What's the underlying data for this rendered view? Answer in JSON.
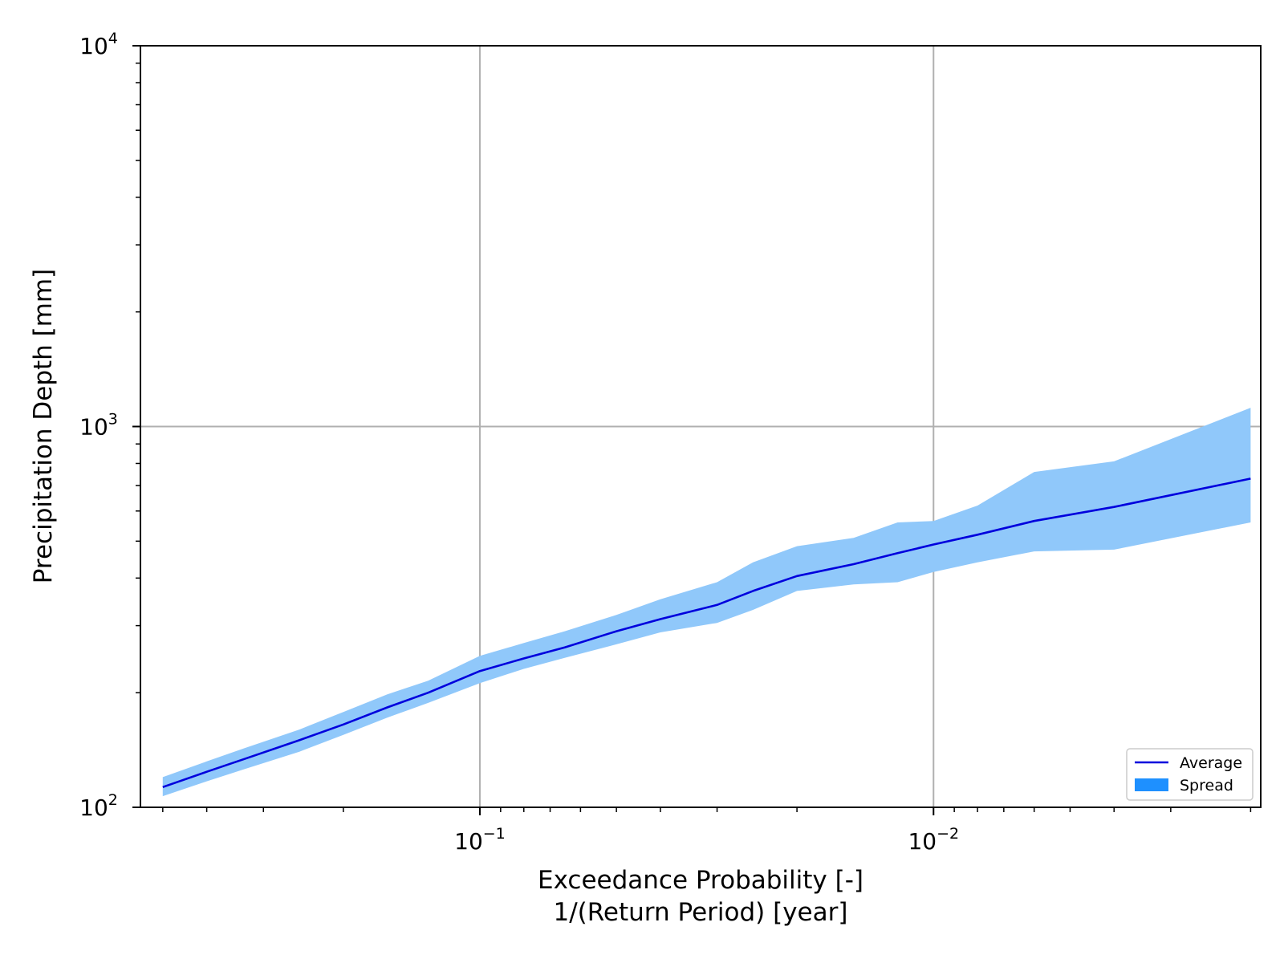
{
  "chart_data": {
    "type": "line",
    "title": "",
    "xlabel": [
      "Exceedance Probability [-]",
      "1/(Return Period) [year]"
    ],
    "ylabel": "Precipitation Depth [mm]",
    "x_scale": "log",
    "x_inverted": true,
    "y_scale": "log",
    "xlim": [
      0.56,
      0.0019
    ],
    "ylim": [
      100,
      10000
    ],
    "x_ticks": [
      {
        "value": 0.1,
        "base": "10",
        "exp": "−1"
      },
      {
        "value": 0.01,
        "base": "10",
        "exp": "−2"
      }
    ],
    "y_ticks": [
      {
        "value": 100,
        "base": "10",
        "exp": "2"
      },
      {
        "value": 1000,
        "base": "10",
        "exp": "3"
      },
      {
        "value": 10000,
        "base": "10",
        "exp": "4"
      }
    ],
    "grid": true,
    "legend": {
      "position": "lower-right"
    },
    "series": [
      {
        "name": "Average",
        "kind": "line",
        "color": "#0000dd",
        "x": [
          0.5,
          0.4,
          0.33,
          0.25,
          0.2,
          0.16,
          0.13,
          0.1,
          0.08,
          0.065,
          0.05,
          0.04,
          0.03,
          0.025,
          0.02,
          0.015,
          0.012,
          0.01,
          0.008,
          0.006,
          0.004,
          0.002
        ],
        "y": [
          113,
          124,
          134,
          150,
          165,
          183,
          200,
          228,
          246,
          263,
          290,
          312,
          340,
          370,
          405,
          435,
          465,
          490,
          520,
          565,
          615,
          730
        ]
      },
      {
        "name": "Spread",
        "kind": "band",
        "color": "#1e90ff",
        "fill_color": "#90c8fa",
        "x": [
          0.5,
          0.4,
          0.33,
          0.25,
          0.2,
          0.16,
          0.13,
          0.1,
          0.08,
          0.065,
          0.05,
          0.04,
          0.03,
          0.025,
          0.02,
          0.015,
          0.012,
          0.01,
          0.008,
          0.006,
          0.004,
          0.002
        ],
        "y_low": [
          107,
          117,
          126,
          140,
          155,
          172,
          188,
          212,
          231,
          247,
          268,
          288,
          305,
          330,
          370,
          385,
          390,
          415,
          440,
          470,
          475,
          560
        ],
        "y_high": [
          120,
          132,
          143,
          160,
          178,
          198,
          215,
          250,
          270,
          290,
          320,
          352,
          390,
          440,
          485,
          510,
          560,
          565,
          620,
          760,
          810,
          1120
        ]
      }
    ]
  }
}
